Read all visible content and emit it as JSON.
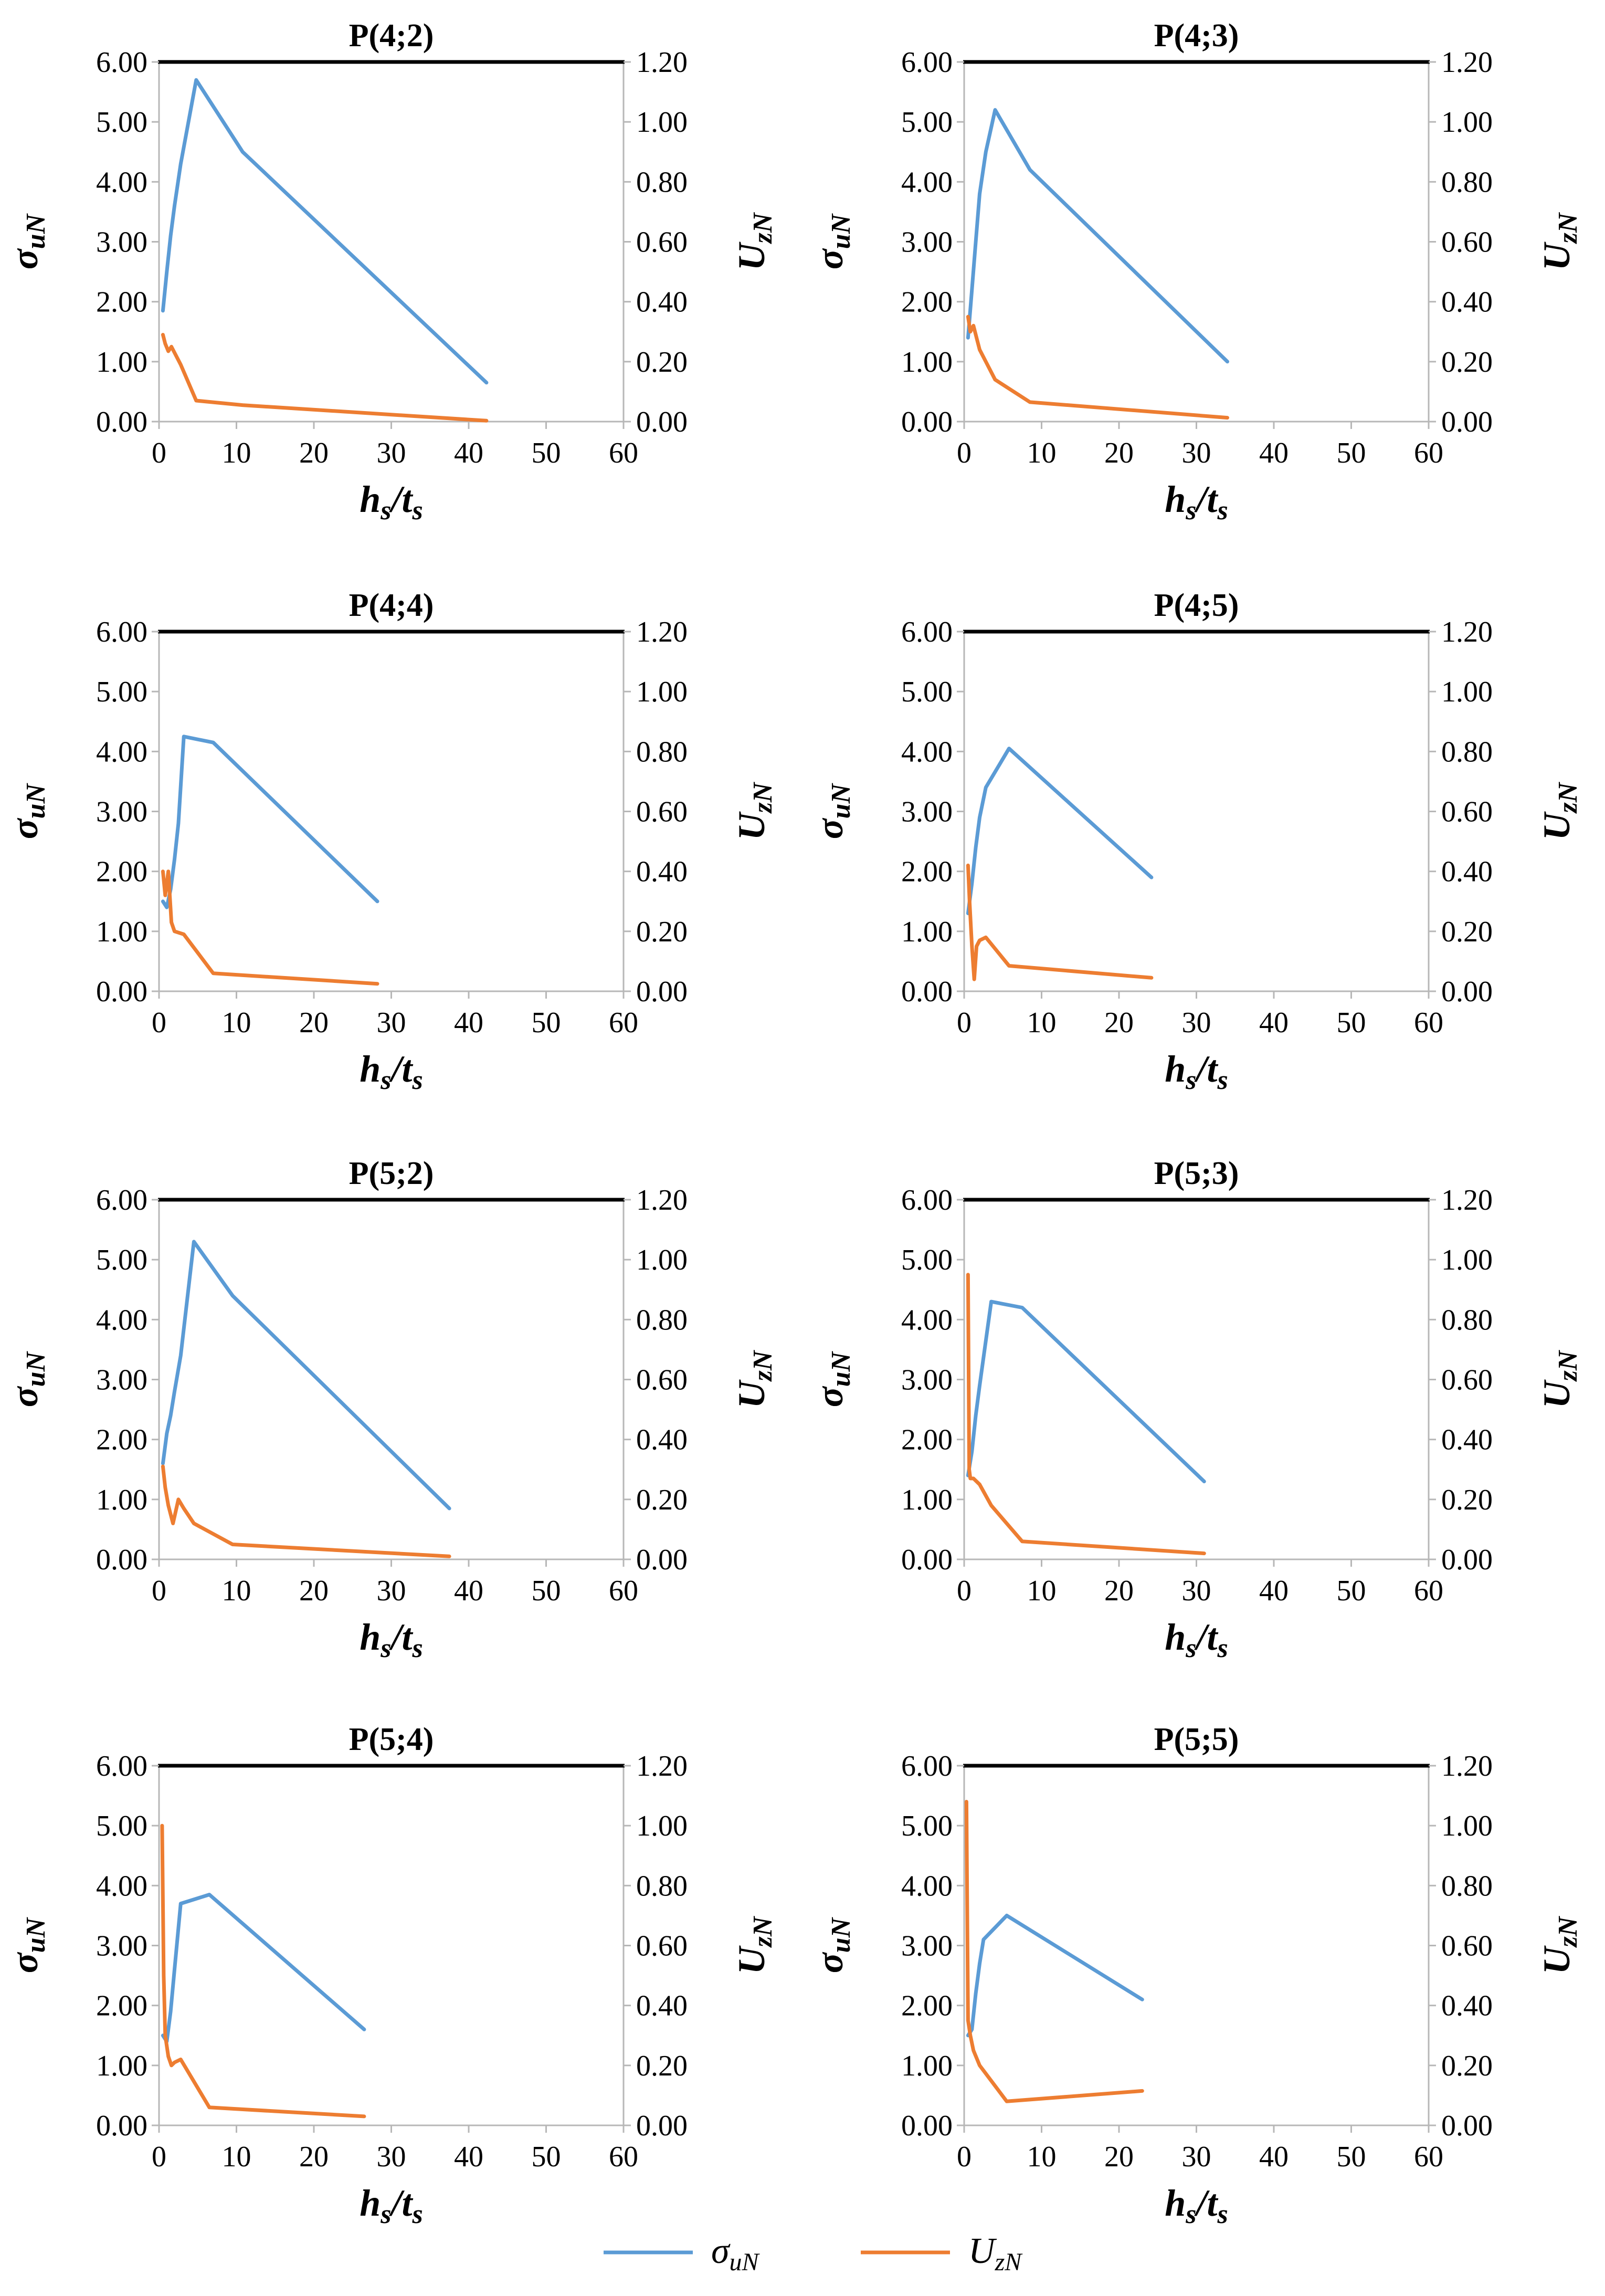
{
  "chart_data": [
    {
      "type": "line",
      "title": "P(4;2)",
      "xlabel": "h_s/t_s",
      "ylabel": "σ_uN",
      "y2label": "U_zN",
      "xlim": [
        0,
        60
      ],
      "ylim": [
        0,
        6
      ],
      "y2lim": [
        0,
        1.2
      ],
      "xticks": [
        "0",
        "10",
        "20",
        "30",
        "40",
        "50",
        "60"
      ],
      "yticks": [
        "0.00",
        "1.00",
        "2.00",
        "3.00",
        "4.00",
        "5.00",
        "6.00"
      ],
      "y2ticks": [
        "0.00",
        "0.20",
        "0.40",
        "0.60",
        "0.80",
        "1.00",
        "1.20"
      ],
      "series": [
        {
          "name": "σ_uN",
          "axis": "left",
          "color": "#5b9bd5",
          "x": [
            0.5,
            1.0,
            1.5,
            2.0,
            2.8,
            4.8,
            10.8,
            42.3
          ],
          "y": [
            1.85,
            2.5,
            3.1,
            3.6,
            4.3,
            5.7,
            4.5,
            0.65
          ]
        },
        {
          "name": "U_zN",
          "axis": "right",
          "color": "#ed7d31",
          "x": [
            0.5,
            0.8,
            1.2,
            1.6,
            2.0,
            2.8,
            4.8,
            10.8,
            42.3
          ],
          "y": [
            0.29,
            0.26,
            0.235,
            0.25,
            0.23,
            0.19,
            0.07,
            0.055,
            0.003
          ]
        }
      ]
    },
    {
      "type": "line",
      "title": "P(4;3)",
      "xlabel": "h_s/t_s",
      "ylabel": "σ_uN",
      "y2label": "U_zN",
      "xlim": [
        0,
        60
      ],
      "ylim": [
        0,
        6
      ],
      "y2lim": [
        0,
        1.2
      ],
      "xticks": [
        "0",
        "10",
        "20",
        "30",
        "40",
        "50",
        "60"
      ],
      "yticks": [
        "0.00",
        "1.00",
        "2.00",
        "3.00",
        "4.00",
        "5.00",
        "6.00"
      ],
      "y2ticks": [
        "0.00",
        "0.20",
        "0.40",
        "0.60",
        "0.80",
        "1.00",
        "1.20"
      ],
      "series": [
        {
          "name": "σ_uN",
          "axis": "left",
          "color": "#5b9bd5",
          "x": [
            0.5,
            1.0,
            1.5,
            2.0,
            2.8,
            4.0,
            8.5,
            34.0
          ],
          "y": [
            1.4,
            2.2,
            3.0,
            3.8,
            4.5,
            5.2,
            4.2,
            1.0
          ]
        },
        {
          "name": "U_zN",
          "axis": "right",
          "color": "#ed7d31",
          "x": [
            0.5,
            0.8,
            1.2,
            1.6,
            2.0,
            2.8,
            4.0,
            8.5,
            34.0
          ],
          "y": [
            0.35,
            0.3,
            0.32,
            0.28,
            0.24,
            0.2,
            0.14,
            0.065,
            0.013
          ]
        }
      ]
    },
    {
      "type": "line",
      "title": "P(4;4)",
      "xlabel": "h_s/t_s",
      "ylabel": "σ_uN",
      "y2label": "U_zN",
      "xlim": [
        0,
        60
      ],
      "ylim": [
        0,
        6
      ],
      "y2lim": [
        0,
        1.2
      ],
      "xticks": [
        "0",
        "10",
        "20",
        "30",
        "40",
        "50",
        "60"
      ],
      "yticks": [
        "0.00",
        "1.00",
        "2.00",
        "3.00",
        "4.00",
        "5.00",
        "6.00"
      ],
      "y2ticks": [
        "0.00",
        "0.20",
        "0.40",
        "0.60",
        "0.80",
        "1.00",
        "1.20"
      ],
      "series": [
        {
          "name": "σ_uN",
          "axis": "left",
          "color": "#5b9bd5",
          "x": [
            0.5,
            1.0,
            1.5,
            2.0,
            2.5,
            3.2,
            7.0,
            28.2
          ],
          "y": [
            1.5,
            1.4,
            1.7,
            2.2,
            2.8,
            4.25,
            4.15,
            1.5
          ]
        },
        {
          "name": "U_zN",
          "axis": "right",
          "color": "#ed7d31",
          "x": [
            0.5,
            0.8,
            1.2,
            1.6,
            2.0,
            3.2,
            7.0,
            28.2
          ],
          "y": [
            0.4,
            0.32,
            0.4,
            0.23,
            0.2,
            0.19,
            0.06,
            0.025
          ]
        }
      ]
    },
    {
      "type": "line",
      "title": "P(4;5)",
      "xlabel": "h_s/t_s",
      "ylabel": "σ_uN",
      "y2label": "U_zN",
      "xlim": [
        0,
        60
      ],
      "ylim": [
        0,
        6
      ],
      "y2lim": [
        0,
        1.2
      ],
      "xticks": [
        "0",
        "10",
        "20",
        "30",
        "40",
        "50",
        "60"
      ],
      "yticks": [
        "0.00",
        "1.00",
        "2.00",
        "3.00",
        "4.00",
        "5.00",
        "6.00"
      ],
      "y2ticks": [
        "0.00",
        "0.20",
        "0.40",
        "0.60",
        "0.80",
        "1.00",
        "1.20"
      ],
      "series": [
        {
          "name": "σ_uN",
          "axis": "left",
          "color": "#5b9bd5",
          "x": [
            0.5,
            1.0,
            1.5,
            2.0,
            2.8,
            5.8,
            24.2
          ],
          "y": [
            1.3,
            1.8,
            2.4,
            2.9,
            3.4,
            4.05,
            1.9
          ]
        },
        {
          "name": "U_zN",
          "axis": "right",
          "color": "#ed7d31",
          "x": [
            0.5,
            0.7,
            1.0,
            1.3,
            1.6,
            2.0,
            2.8,
            5.8,
            24.2
          ],
          "y": [
            0.42,
            0.3,
            0.15,
            0.04,
            0.15,
            0.17,
            0.18,
            0.085,
            0.045
          ]
        }
      ]
    },
    {
      "type": "line",
      "title": "P(5;2)",
      "xlabel": "h_s/t_s",
      "ylabel": "σ_uN",
      "y2label": "U_zN",
      "xlim": [
        0,
        60
      ],
      "ylim": [
        0,
        6
      ],
      "y2lim": [
        0,
        1.2
      ],
      "xticks": [
        "0",
        "10",
        "20",
        "30",
        "40",
        "50",
        "60"
      ],
      "yticks": [
        "0.00",
        "1.00",
        "2.00",
        "3.00",
        "4.00",
        "5.00",
        "6.00"
      ],
      "y2ticks": [
        "0.00",
        "0.20",
        "0.40",
        "0.60",
        "0.80",
        "1.00",
        "1.20"
      ],
      "series": [
        {
          "name": "σ_uN",
          "axis": "left",
          "color": "#5b9bd5",
          "x": [
            0.5,
            1.0,
            1.5,
            2.0,
            2.8,
            4.5,
            9.5,
            37.5
          ],
          "y": [
            1.6,
            2.1,
            2.4,
            2.8,
            3.4,
            5.3,
            4.4,
            0.85
          ]
        },
        {
          "name": "U_zN",
          "axis": "right",
          "color": "#ed7d31",
          "x": [
            0.5,
            0.8,
            1.2,
            1.8,
            2.5,
            3.2,
            4.5,
            9.5,
            37.5
          ],
          "y": [
            0.31,
            0.24,
            0.18,
            0.12,
            0.2,
            0.17,
            0.12,
            0.05,
            0.01
          ]
        }
      ]
    },
    {
      "type": "line",
      "title": "P(5;3)",
      "xlabel": "h_s/t_s",
      "ylabel": "σ_uN",
      "y2label": "U_zN",
      "xlim": [
        0,
        60
      ],
      "ylim": [
        0,
        6
      ],
      "y2lim": [
        0,
        1.2
      ],
      "xticks": [
        "0",
        "10",
        "20",
        "30",
        "40",
        "50",
        "60"
      ],
      "yticks": [
        "0.00",
        "1.00",
        "2.00",
        "3.00",
        "4.00",
        "5.00",
        "6.00"
      ],
      "y2ticks": [
        "0.00",
        "0.20",
        "0.40",
        "0.60",
        "0.80",
        "1.00",
        "1.20"
      ],
      "series": [
        {
          "name": "σ_uN",
          "axis": "left",
          "color": "#5b9bd5",
          "x": [
            0.5,
            1.0,
            1.5,
            2.0,
            3.5,
            7.5,
            31.0
          ],
          "y": [
            1.4,
            1.8,
            2.4,
            2.9,
            4.3,
            4.2,
            1.3
          ]
        },
        {
          "name": "U_zN",
          "axis": "right",
          "color": "#ed7d31",
          "x": [
            0.5,
            0.65,
            0.8,
            1.2,
            2.0,
            3.5,
            7.5,
            31.0
          ],
          "y": [
            0.95,
            0.3,
            0.27,
            0.27,
            0.25,
            0.18,
            0.06,
            0.02
          ]
        }
      ]
    },
    {
      "type": "line",
      "title": "P(5;4)",
      "xlabel": "h_s/t_s",
      "ylabel": "σ_uN",
      "y2label": "U_zN",
      "xlim": [
        0,
        60
      ],
      "ylim": [
        0,
        6
      ],
      "y2lim": [
        0,
        1.2
      ],
      "xticks": [
        "0",
        "10",
        "20",
        "30",
        "40",
        "50",
        "60"
      ],
      "yticks": [
        "0.00",
        "1.00",
        "2.00",
        "3.00",
        "4.00",
        "5.00",
        "6.00"
      ],
      "y2ticks": [
        "0.00",
        "0.20",
        "0.40",
        "0.60",
        "0.80",
        "1.00",
        "1.20"
      ],
      "series": [
        {
          "name": "σ_uN",
          "axis": "left",
          "color": "#5b9bd5",
          "x": [
            0.5,
            1.0,
            1.5,
            2.0,
            2.8,
            6.5,
            26.5
          ],
          "y": [
            1.5,
            1.4,
            1.9,
            2.6,
            3.7,
            3.85,
            1.6
          ]
        },
        {
          "name": "U_zN",
          "axis": "right",
          "color": "#ed7d31",
          "x": [
            0.4,
            0.6,
            0.8,
            1.2,
            1.6,
            2.0,
            2.8,
            6.5,
            26.5
          ],
          "y": [
            1.0,
            0.5,
            0.3,
            0.23,
            0.2,
            0.21,
            0.22,
            0.06,
            0.03
          ]
        }
      ]
    },
    {
      "type": "line",
      "title": "P(5;5)",
      "xlabel": "h_s/t_s",
      "ylabel": "σ_uN",
      "y2label": "U_zN",
      "xlim": [
        0,
        60
      ],
      "ylim": [
        0,
        6
      ],
      "y2lim": [
        0,
        1.2
      ],
      "xticks": [
        "0",
        "10",
        "20",
        "30",
        "40",
        "50",
        "60"
      ],
      "yticks": [
        "0.00",
        "1.00",
        "2.00",
        "3.00",
        "4.00",
        "5.00",
        "6.00"
      ],
      "y2ticks": [
        "0.00",
        "0.20",
        "0.40",
        "0.60",
        "0.80",
        "1.00",
        "1.20"
      ],
      "series": [
        {
          "name": "σ_uN",
          "axis": "left",
          "color": "#5b9bd5",
          "x": [
            0.5,
            1.0,
            1.5,
            2.0,
            2.5,
            5.5,
            23.0
          ],
          "y": [
            1.5,
            1.6,
            2.2,
            2.7,
            3.1,
            3.5,
            2.1
          ]
        },
        {
          "name": "U_zN",
          "axis": "right",
          "color": "#ed7d31",
          "x": [
            0.3,
            0.5,
            0.8,
            1.2,
            2.0,
            5.5,
            23.0
          ],
          "y": [
            1.08,
            0.35,
            0.3,
            0.25,
            0.2,
            0.08,
            0.115
          ]
        }
      ]
    }
  ],
  "legend": {
    "items": [
      {
        "main": "σ",
        "sub": "uN",
        "color": "#5b9bd5"
      },
      {
        "main": "U",
        "sub": "zN",
        "color": "#ed7d31"
      }
    ]
  }
}
